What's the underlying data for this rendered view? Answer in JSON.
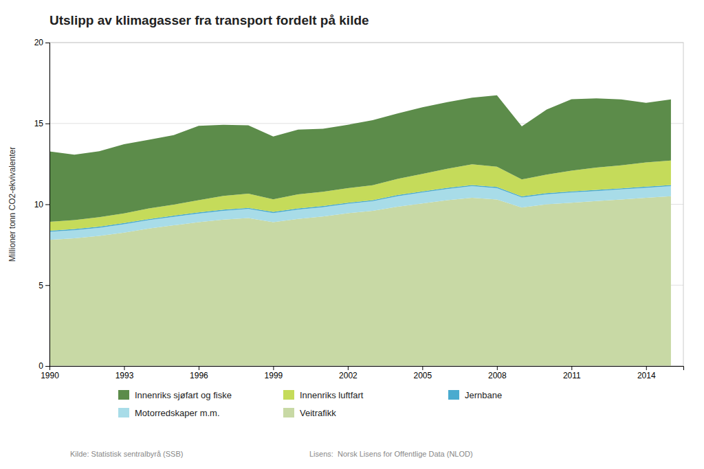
{
  "chart_data": {
    "type": "area",
    "stacked": true,
    "title": "Utslipp av klimagasser fra transport fordelt på kilde",
    "y_label": "Millioner tonn CO2-ekvivalenter",
    "annotations": [
      "Kilde: Statistisk sentralbyrå (SSB)",
      "Lisens:  Norsk Lisens for Offentlige Data (NLOD)"
    ],
    "x": [
      1990,
      1991,
      1992,
      1993,
      1994,
      1995,
      1996,
      1997,
      1998,
      1999,
      2000,
      2001,
      2002,
      2003,
      2004,
      2005,
      2006,
      2007,
      2008,
      2009,
      2010,
      2011,
      2012,
      2013,
      2014,
      2015
    ],
    "series": [
      {
        "name": "Veitrafikk",
        "color": "#c8d9a5",
        "values": [
          7.8,
          7.9,
          8.05,
          8.25,
          8.5,
          8.7,
          8.9,
          9.05,
          9.15,
          8.9,
          9.1,
          9.25,
          9.45,
          9.6,
          9.85,
          10.05,
          10.25,
          10.4,
          10.3,
          9.8,
          10.0,
          10.1,
          10.2,
          10.3,
          10.4,
          10.5
        ]
      },
      {
        "name": "Motorredskaper m.m.",
        "color": "#a8dce8",
        "values": [
          0.5,
          0.5,
          0.5,
          0.52,
          0.52,
          0.53,
          0.53,
          0.55,
          0.56,
          0.56,
          0.57,
          0.57,
          0.58,
          0.59,
          0.65,
          0.68,
          0.7,
          0.72,
          0.7,
          0.62,
          0.62,
          0.63,
          0.62,
          0.62,
          0.62,
          0.62
        ]
      },
      {
        "name": "Jernbane",
        "color": "#4aabcf",
        "values": [
          0.07,
          0.07,
          0.07,
          0.07,
          0.07,
          0.07,
          0.07,
          0.07,
          0.07,
          0.07,
          0.07,
          0.07,
          0.07,
          0.07,
          0.07,
          0.07,
          0.07,
          0.07,
          0.07,
          0.07,
          0.07,
          0.07,
          0.07,
          0.07,
          0.07,
          0.07
        ]
      },
      {
        "name": "Innenriks luftfart",
        "color": "#c5db5a",
        "values": [
          0.55,
          0.55,
          0.58,
          0.6,
          0.65,
          0.68,
          0.75,
          0.85,
          0.88,
          0.78,
          0.88,
          0.88,
          0.9,
          0.92,
          1.0,
          1.08,
          1.18,
          1.28,
          1.25,
          1.05,
          1.15,
          1.28,
          1.38,
          1.42,
          1.5,
          1.52
        ]
      },
      {
        "name": "Innenriks sjøfart og fiske",
        "color": "#5c8c4a",
        "values": [
          4.35,
          4.05,
          4.08,
          4.28,
          4.25,
          4.3,
          4.6,
          4.4,
          4.22,
          3.88,
          4.0,
          3.9,
          3.92,
          4.02,
          4.05,
          4.12,
          4.12,
          4.12,
          4.42,
          3.28,
          4.02,
          4.42,
          4.28,
          4.08,
          3.68,
          3.78
        ]
      }
    ],
    "xlim": [
      1990,
      2015.5
    ],
    "xticks": [
      1990,
      1993,
      1996,
      1999,
      2002,
      2005,
      2008,
      2011,
      2014
    ],
    "ylim": [
      0,
      20
    ],
    "yticks": [
      0,
      5,
      10,
      15,
      20
    ],
    "grid": true,
    "legend": "bottom"
  }
}
